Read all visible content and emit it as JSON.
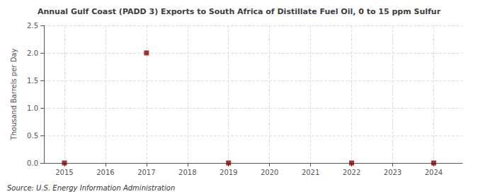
{
  "chart_data": {
    "type": "scatter",
    "title": "Annual Gulf Coast (PADD 3) Exports to South Africa of Distillate Fuel Oil, 0 to 15 ppm Sulfur",
    "ylabel": "Thousand Barrels per Day",
    "annotations": [
      "Source: U.S. Energy Information Administration"
    ],
    "x": [
      2015,
      2017,
      2019,
      2022,
      2024
    ],
    "values": [
      0.0,
      2.0,
      0.0,
      0.0,
      0.0
    ],
    "color": "#8b0000",
    "marker": "square",
    "xlim": [
      2014.5,
      2024.7
    ],
    "xticks": [
      2015,
      2016,
      2017,
      2018,
      2019,
      2020,
      2021,
      2022,
      2023,
      2024
    ],
    "ylim": [
      0,
      2.5
    ],
    "yticks": [
      {
        "value": 0,
        "label": "0.0"
      },
      0.5,
      {
        "value": 1,
        "label": "1.0"
      },
      1.5,
      {
        "value": 2,
        "label": "2.0"
      },
      2.5
    ],
    "grid": true
  }
}
